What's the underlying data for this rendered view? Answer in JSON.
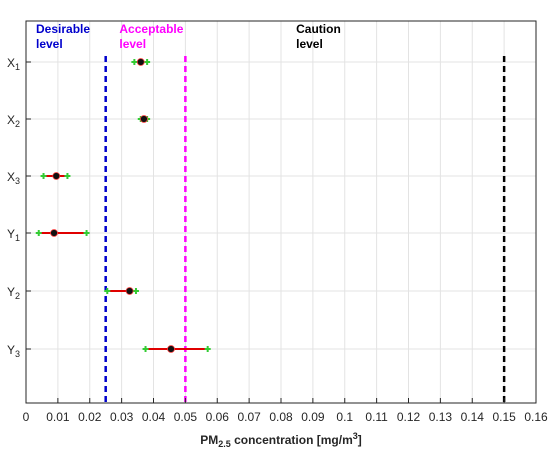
{
  "chart_data": {
    "type": "scatter",
    "xlabel": {
      "prefix": "PM",
      "sub": "2.5",
      "middle": " concentration [mg/m",
      "sup": "3",
      "end": "]"
    },
    "xlim": [
      0,
      0.16
    ],
    "x_ticks": [
      "0",
      "0.01",
      "0.02",
      "0.03",
      "0.04",
      "0.05",
      "0.06",
      "0.07",
      "0.08",
      "0.09",
      "0.1",
      "0.11",
      "0.12",
      "0.13",
      "0.14",
      "0.15",
      "0.16"
    ],
    "grid": true,
    "categories": [
      {
        "base": "X",
        "sub": "1",
        "mean": 0.036,
        "low": 0.034,
        "high": 0.038
      },
      {
        "base": "X",
        "sub": "2",
        "mean": 0.037,
        "low": 0.036,
        "high": 0.038
      },
      {
        "base": "X",
        "sub": "3",
        "mean": 0.0095,
        "low": 0.0055,
        "high": 0.013
      },
      {
        "base": "Y",
        "sub": "1",
        "mean": 0.0088,
        "low": 0.004,
        "high": 0.019
      },
      {
        "base": "Y",
        "sub": "2",
        "mean": 0.0325,
        "low": 0.0255,
        "high": 0.0345
      },
      {
        "base": "Y",
        "sub": "3",
        "mean": 0.0455,
        "low": 0.0375,
        "high": 0.057
      }
    ],
    "threshold_lines": [
      {
        "value": 0.025,
        "line1": "Desirable",
        "line2": "level",
        "color": "#0000cc"
      },
      {
        "value": 0.05,
        "line1": "Acceptable",
        "line2": "level",
        "color": "#ff00ff"
      },
      {
        "value": 0.15,
        "line1": "Caution",
        "line2": "level",
        "color": "#000000"
      }
    ],
    "colors": {
      "error_bar": "#e00000",
      "cap": "#33cc33",
      "marker_fill": "#111111",
      "marker_edge": "#ff4444",
      "grid": "#e3e3e3",
      "axis": "#262626"
    }
  }
}
